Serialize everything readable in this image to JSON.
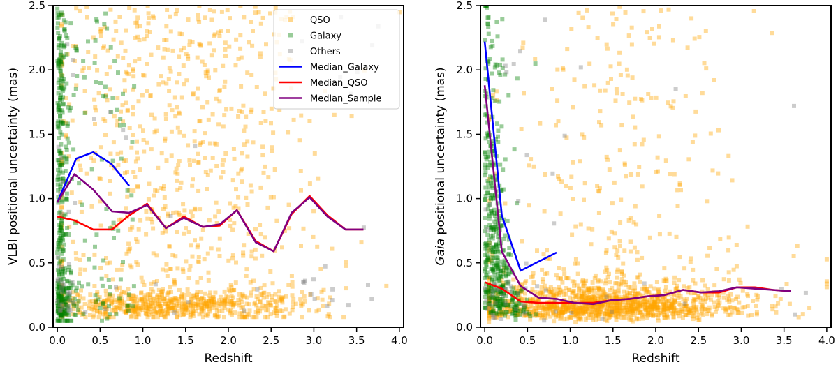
{
  "chart_data": [
    {
      "type": "scatter",
      "title": "",
      "xlabel": "Redshift",
      "ylabel": "VLBI positional uncertainty (mas)",
      "ylabel_italic_prefix": "",
      "xlim": [
        -0.05,
        4.05
      ],
      "ylim": [
        0.0,
        2.5
      ],
      "xticks": [
        "0.0",
        "0.5",
        "1.0",
        "1.5",
        "2.0",
        "2.5",
        "3.0",
        "3.5",
        "4.0"
      ],
      "yticks": [
        "0.0",
        "0.5",
        "1.0",
        "1.5",
        "2.0",
        "2.5"
      ],
      "legend_position": "top-right",
      "scatter_series": [
        {
          "name": "QSO",
          "color": "#ffa500",
          "count": 1300,
          "seed": 11,
          "model": "qso_vlbi"
        },
        {
          "name": "Galaxy",
          "color": "#008000",
          "count": 450,
          "seed": 12,
          "model": "gal_vlbi"
        },
        {
          "name": "Others",
          "color": "#808080",
          "count": 70,
          "seed": 13,
          "model": "oth_vlbi"
        }
      ],
      "line_series": [
        {
          "name": "Median_Galaxy",
          "color": "#0000ff",
          "x": [
            0.0,
            0.22,
            0.42,
            0.63,
            0.84
          ],
          "y": [
            0.97,
            1.31,
            1.36,
            1.27,
            1.1
          ]
        },
        {
          "name": "Median_QSO",
          "color": "#ff0000",
          "x": [
            0.0,
            0.2,
            0.42,
            0.64,
            0.84,
            1.05,
            1.27,
            1.48,
            1.7,
            1.9,
            2.1,
            2.32,
            2.53,
            2.74,
            2.95,
            3.16,
            3.37,
            3.58
          ],
          "y": [
            0.86,
            0.83,
            0.76,
            0.76,
            0.87,
            0.96,
            0.77,
            0.86,
            0.78,
            0.79,
            0.91,
            0.67,
            0.59,
            0.88,
            1.02,
            0.87,
            0.76,
            0.76
          ]
        },
        {
          "name": "Median_Sample",
          "color": "#800080",
          "x": [
            0.0,
            0.2,
            0.42,
            0.64,
            0.84,
            1.05,
            1.27,
            1.48,
            1.7,
            1.9,
            2.1,
            2.32,
            2.53,
            2.74,
            2.95,
            3.16,
            3.37,
            3.58
          ],
          "y": [
            0.97,
            1.19,
            1.07,
            0.9,
            0.89,
            0.95,
            0.77,
            0.85,
            0.78,
            0.8,
            0.91,
            0.66,
            0.59,
            0.89,
            1.01,
            0.86,
            0.76,
            0.76
          ]
        }
      ]
    },
    {
      "type": "scatter",
      "title": "",
      "xlabel": "Redshift",
      "ylabel": " positional uncertainty (mas)",
      "ylabel_italic_prefix": "Gaia",
      "xlim": [
        -0.05,
        4.05
      ],
      "ylim": [
        0.0,
        2.5
      ],
      "xticks": [
        "0.0",
        "0.5",
        "1.0",
        "1.5",
        "2.0",
        "2.5",
        "3.0",
        "3.5",
        "4.0"
      ],
      "yticks": [
        "0.0",
        "0.5",
        "1.0",
        "1.5",
        "2.0",
        "2.5"
      ],
      "legend_position": "none",
      "scatter_series": [
        {
          "name": "QSO",
          "color": "#ffa500",
          "count": 1500,
          "seed": 21,
          "model": "qso_gaia"
        },
        {
          "name": "Galaxy",
          "color": "#008000",
          "count": 450,
          "seed": 22,
          "model": "gal_gaia"
        },
        {
          "name": "Others",
          "color": "#808080",
          "count": 60,
          "seed": 23,
          "model": "oth_gaia"
        }
      ],
      "line_series": [
        {
          "name": "Median_Galaxy",
          "color": "#0000ff",
          "x": [
            0.0,
            0.2,
            0.42,
            0.84
          ],
          "y": [
            2.22,
            0.87,
            0.44,
            0.58
          ]
        },
        {
          "name": "Median_QSO",
          "color": "#ff0000",
          "x": [
            0.0,
            0.2,
            0.42,
            0.63,
            0.84,
            1.05,
            1.27,
            1.48,
            1.7,
            1.9,
            2.1,
            2.32,
            2.53,
            2.74,
            2.95,
            3.16,
            3.37,
            3.58
          ],
          "y": [
            0.35,
            0.3,
            0.2,
            0.19,
            0.19,
            0.19,
            0.19,
            0.21,
            0.22,
            0.24,
            0.25,
            0.29,
            0.27,
            0.27,
            0.31,
            0.31,
            0.29,
            0.28
          ]
        },
        {
          "name": "Median_Sample",
          "color": "#800080",
          "x": [
            0.0,
            0.2,
            0.42,
            0.63,
            0.84,
            1.05,
            1.27,
            1.48,
            1.7,
            1.9,
            2.1,
            2.32,
            2.53,
            2.74,
            2.95,
            3.16,
            3.37,
            3.58
          ],
          "y": [
            1.88,
            0.59,
            0.32,
            0.23,
            0.22,
            0.19,
            0.18,
            0.21,
            0.22,
            0.24,
            0.25,
            0.29,
            0.27,
            0.28,
            0.31,
            0.3,
            0.29,
            0.28
          ]
        }
      ]
    }
  ]
}
